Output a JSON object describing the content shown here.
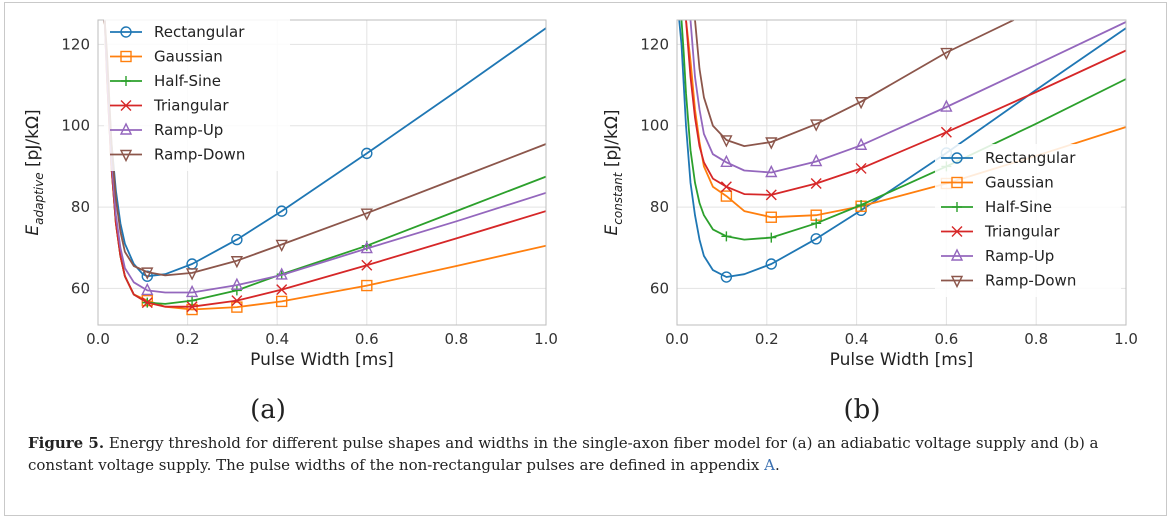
{
  "caption": {
    "label": "Figure 5.",
    "text": " Energy threshold for different pulse shapes and widths in the single-axon fiber model for (a) an adiabatic voltage supply and (b) a constant voltage supply. The pulse widths of the non-rectangular pulses are defined in appendix ",
    "link": "A",
    "end": "."
  },
  "colors": {
    "Rectangular": "#1f77b4",
    "Gaussian": "#ff7f0e",
    "Half-Sine": "#2ca02c",
    "Triangular": "#d62728",
    "Ramp-Up": "#9467bd",
    "Ramp-Down": "#8c564b"
  },
  "chart_data": [
    {
      "type": "line",
      "panel_label": "(a)",
      "xlabel": "Pulse Width [ms]",
      "ylabel_main": "E",
      "ylabel_sub": "adaptive",
      "ylabel_unit": " [pJ/kΩ]",
      "xlim": [
        0.0,
        1.0
      ],
      "ylim": [
        51,
        126
      ],
      "xticks": [
        0.0,
        0.2,
        0.4,
        0.6,
        0.8,
        1.0
      ],
      "xtick_labels": [
        "0.0",
        "0.2",
        "0.4",
        "0.6",
        "0.8",
        "1.0"
      ],
      "yticks": [
        60,
        80,
        100,
        120
      ],
      "ytick_labels": [
        "60",
        "80",
        "100",
        "120"
      ],
      "grid": true,
      "legend_position": "top-left",
      "markers_x": [
        0.11,
        0.21,
        0.31,
        0.41,
        0.6
      ],
      "series": [
        {
          "name": "Rectangular",
          "marker": "circle",
          "x": [
            0.015,
            0.02,
            0.03,
            0.04,
            0.05,
            0.06,
            0.08,
            0.1,
            0.11,
            0.15,
            0.21,
            0.31,
            0.41,
            0.6,
            0.8,
            1.0
          ],
          "y": [
            126,
            115,
            96,
            84,
            76,
            71,
            66,
            63.5,
            63,
            63.5,
            66,
            72,
            79,
            93.2,
            108.5,
            124
          ]
        },
        {
          "name": "Gaussian",
          "marker": "square",
          "x": [
            0.015,
            0.02,
            0.03,
            0.04,
            0.05,
            0.06,
            0.08,
            0.11,
            0.15,
            0.21,
            0.31,
            0.41,
            0.6,
            0.8,
            1.0
          ],
          "y": [
            126,
            112,
            90,
            76,
            68,
            63,
            58.5,
            57,
            55.5,
            54.8,
            55.4,
            56.8,
            60.7,
            65.5,
            70.5
          ]
        },
        {
          "name": "Half-Sine",
          "marker": "plus",
          "x": [
            0.015,
            0.02,
            0.03,
            0.04,
            0.05,
            0.06,
            0.08,
            0.11,
            0.15,
            0.21,
            0.31,
            0.41,
            0.6,
            0.8,
            1.0
          ],
          "y": [
            126,
            112,
            90,
            76,
            68,
            63,
            58.5,
            56.5,
            56.2,
            57,
            59.5,
            63.5,
            70.5,
            79,
            87.5
          ]
        },
        {
          "name": "Triangular",
          "marker": "x",
          "x": [
            0.015,
            0.02,
            0.03,
            0.04,
            0.05,
            0.06,
            0.08,
            0.11,
            0.15,
            0.21,
            0.31,
            0.41,
            0.6,
            0.8,
            1.0
          ],
          "y": [
            126,
            112,
            90,
            76,
            68,
            63,
            58.5,
            56.5,
            55.5,
            55.5,
            57,
            59.7,
            65.7,
            72.3,
            79
          ]
        },
        {
          "name": "Ramp-Up",
          "marker": "triangle-up",
          "x": [
            0.015,
            0.02,
            0.03,
            0.04,
            0.05,
            0.06,
            0.08,
            0.11,
            0.15,
            0.21,
            0.31,
            0.41,
            0.6,
            0.8,
            1.0
          ],
          "y": [
            126,
            114,
            92,
            78,
            70,
            65,
            61.5,
            59.5,
            59,
            59,
            60.8,
            63.3,
            69.8,
            76.5,
            83.5
          ]
        },
        {
          "name": "Ramp-Down",
          "marker": "triangle-down",
          "x": [
            0.015,
            0.02,
            0.03,
            0.04,
            0.05,
            0.06,
            0.08,
            0.11,
            0.15,
            0.21,
            0.31,
            0.41,
            0.6,
            0.8,
            1.0
          ],
          "y": [
            126,
            118,
            96,
            82,
            74,
            69,
            65.5,
            64,
            63.2,
            63.8,
            66.8,
            70.8,
            78.5,
            87,
            95.5
          ]
        }
      ]
    },
    {
      "type": "line",
      "panel_label": "(b)",
      "xlabel": "Pulse Width [ms]",
      "ylabel_main": "E",
      "ylabel_sub": "constant",
      "ylabel_unit": " [pJ/kΩ]",
      "xlim": [
        0.0,
        1.0
      ],
      "ylim": [
        51,
        126
      ],
      "xticks": [
        0.0,
        0.2,
        0.4,
        0.6,
        0.8,
        1.0
      ],
      "xtick_labels": [
        "0.0",
        "0.2",
        "0.4",
        "0.6",
        "0.8",
        "1.0"
      ],
      "yticks": [
        60,
        80,
        100,
        120
      ],
      "ytick_labels": [
        "60",
        "80",
        "100",
        "120"
      ],
      "grid": true,
      "legend_position": "center-right",
      "markers_x": [
        0.11,
        0.21,
        0.31,
        0.41,
        0.6
      ],
      "series": [
        {
          "name": "Rectangular",
          "marker": "circle",
          "x": [
            0.005,
            0.01,
            0.02,
            0.03,
            0.04,
            0.05,
            0.06,
            0.08,
            0.11,
            0.15,
            0.21,
            0.31,
            0.41,
            0.6,
            0.8,
            1.0
          ],
          "y": [
            126,
            120,
            100,
            86,
            78,
            72,
            68,
            64.5,
            62.8,
            63.5,
            66,
            72.2,
            79.2,
            93.3,
            108.8,
            124
          ]
        },
        {
          "name": "Gaussian",
          "marker": "square",
          "x": [
            0.02,
            0.03,
            0.04,
            0.05,
            0.06,
            0.08,
            0.11,
            0.15,
            0.21,
            0.31,
            0.41,
            0.6,
            0.8,
            1.0
          ],
          "y": [
            126,
            116,
            104,
            96,
            90,
            85,
            82.7,
            79,
            77.5,
            78,
            80.2,
            85.8,
            92.6,
            99.7
          ]
        },
        {
          "name": "Half-Sine",
          "marker": "plus",
          "x": [
            0.01,
            0.015,
            0.02,
            0.03,
            0.04,
            0.05,
            0.06,
            0.08,
            0.11,
            0.15,
            0.21,
            0.31,
            0.41,
            0.6,
            0.8,
            1.0
          ],
          "y": [
            126,
            118,
            108,
            94,
            86,
            81,
            78,
            74.5,
            72.8,
            72,
            72.5,
            76,
            80.5,
            90,
            100.5,
            111.5
          ]
        },
        {
          "name": "Triangular",
          "marker": "x",
          "x": [
            0.02,
            0.03,
            0.04,
            0.05,
            0.06,
            0.08,
            0.11,
            0.15,
            0.21,
            0.31,
            0.41,
            0.6,
            0.8,
            1.0
          ],
          "y": [
            126,
            112,
            102,
            95,
            91,
            87,
            85,
            83.2,
            83,
            85.8,
            89.5,
            98.4,
            108.3,
            118.5
          ]
        },
        {
          "name": "Ramp-Up",
          "marker": "triangle-up",
          "x": [
            0.03,
            0.04,
            0.05,
            0.06,
            0.08,
            0.11,
            0.15,
            0.21,
            0.31,
            0.41,
            0.6,
            0.8,
            1.0
          ],
          "y": [
            126,
            112,
            104,
            98,
            93,
            91,
            89,
            88.5,
            91.2,
            95.2,
            104.6,
            115,
            125.5
          ]
        },
        {
          "name": "Ramp-Down",
          "marker": "triangle-down",
          "x": [
            0.04,
            0.05,
            0.06,
            0.08,
            0.11,
            0.15,
            0.21,
            0.31,
            0.41,
            0.6,
            0.75
          ],
          "y": [
            126,
            114,
            107,
            100,
            96.5,
            95,
            96,
            100.4,
            105.9,
            118,
            126
          ]
        }
      ]
    }
  ]
}
